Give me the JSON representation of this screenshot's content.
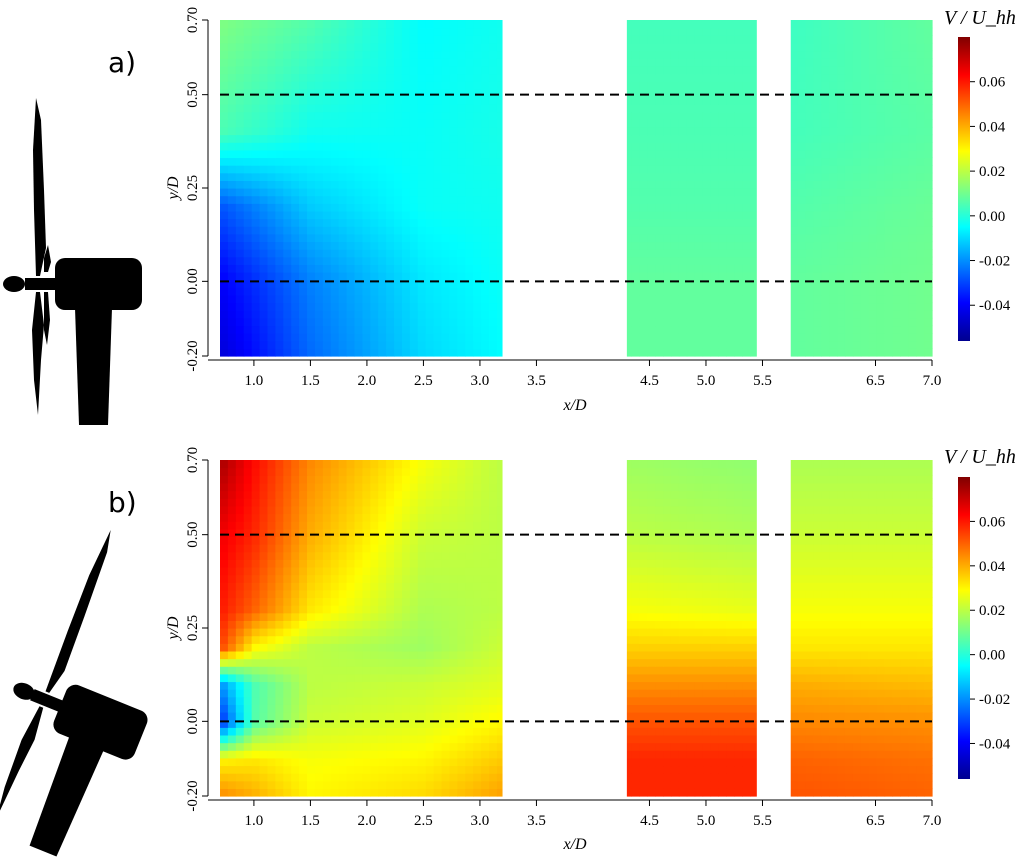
{
  "colors": {
    "colormap": [
      "#00008F",
      "#0000FF",
      "#0080FF",
      "#00FFFF",
      "#80FF80",
      "#FFFF00",
      "#FF8000",
      "#FF0000",
      "#800000"
    ],
    "guide_line": "#000000",
    "turbine": "#000000"
  },
  "chart_data": [
    {
      "type": "heatmap",
      "panel_label": "a)",
      "variable": "V/U_hh",
      "xlabel": "x/D",
      "ylabel": "y/D",
      "xlim": [
        0.7,
        7.0
      ],
      "ylim": [
        -0.2,
        0.7
      ],
      "x_ticks": [
        "1.0",
        "1.5",
        "2.0",
        "2.5",
        "3.0",
        "3.5",
        "4.5",
        "5.0",
        "5.5",
        "6.5",
        "7.0"
      ],
      "y_ticks": [
        "-0.20",
        "0.00",
        "0.25",
        "0.50",
        "0.70"
      ],
      "measured_x_ranges": [
        [
          0.7,
          3.2
        ],
        [
          4.3,
          5.45
        ],
        [
          5.75,
          7.0
        ]
      ],
      "reference_lines_y": [
        0.0,
        0.5
      ],
      "colorbar": {
        "title": "V / U_hh",
        "range": [
          -0.056,
          0.08
        ],
        "ticks": [
          "-0.04",
          "-0.02",
          "0.00",
          "0.02",
          "0.04",
          "0.06"
        ]
      },
      "turbine_yaw": "aligned",
      "field_grid": {
        "x": [
          0.7,
          1.5,
          2.5,
          3.2,
          4.3,
          5.45,
          5.75,
          7.0
        ],
        "y": [
          -0.2,
          0.0,
          0.2,
          0.4,
          0.7
        ],
        "values": [
          [
            -0.045,
            -0.025,
            -0.01,
            -0.005,
            0.008,
            0.008,
            0.008,
            0.01
          ],
          [
            -0.04,
            -0.022,
            -0.008,
            -0.004,
            0.008,
            0.008,
            0.008,
            0.01
          ],
          [
            -0.028,
            -0.012,
            -0.004,
            -0.003,
            0.006,
            0.006,
            0.006,
            0.009
          ],
          [
            0.005,
            -0.003,
            -0.004,
            -0.002,
            0.005,
            0.005,
            0.004,
            0.007
          ],
          [
            0.012,
            0.006,
            -0.005,
            -0.003,
            0.004,
            0.004,
            0.003,
            0.008
          ]
        ]
      }
    },
    {
      "type": "heatmap",
      "panel_label": "b)",
      "variable": "V/U_hh",
      "xlabel": "x/D",
      "ylabel": "y/D",
      "xlim": [
        0.7,
        7.0
      ],
      "ylim": [
        -0.2,
        0.7
      ],
      "x_ticks": [
        "1.0",
        "1.5",
        "2.0",
        "2.5",
        "3.0",
        "3.5",
        "4.5",
        "5.0",
        "5.5",
        "6.5",
        "7.0"
      ],
      "y_ticks": [
        "-0.20",
        "0.00",
        "0.25",
        "0.50",
        "0.70"
      ],
      "measured_x_ranges": [
        [
          0.7,
          3.2
        ],
        [
          4.3,
          5.45
        ],
        [
          5.75,
          7.0
        ]
      ],
      "reference_lines_y": [
        0.0,
        0.5
      ],
      "colorbar": {
        "title": "V / U_hh",
        "range": [
          -0.056,
          0.08
        ],
        "ticks": [
          "-0.04",
          "-0.02",
          "0.00",
          "0.02",
          "0.04",
          "0.06"
        ]
      },
      "turbine_yaw": "yawed",
      "field_grid": {
        "x": [
          0.7,
          1.0,
          1.5,
          2.5,
          3.2,
          4.3,
          5.45,
          5.75,
          7.0
        ],
        "y": [
          -0.2,
          -0.1,
          0.0,
          0.1,
          0.2,
          0.3,
          0.5,
          0.7
        ],
        "values": [
          [
            0.045,
            0.04,
            0.03,
            0.034,
            0.042,
            0.058,
            0.058,
            0.052,
            0.05
          ],
          [
            0.03,
            0.032,
            0.028,
            0.03,
            0.036,
            0.058,
            0.058,
            0.05,
            0.048
          ],
          [
            -0.035,
            0.006,
            0.022,
            0.025,
            0.03,
            0.052,
            0.052,
            0.045,
            0.044
          ],
          [
            -0.02,
            0.005,
            0.02,
            0.022,
            0.025,
            0.044,
            0.044,
            0.04,
            0.038
          ],
          [
            0.055,
            0.03,
            0.02,
            0.016,
            0.022,
            0.035,
            0.035,
            0.032,
            0.032
          ],
          [
            0.06,
            0.05,
            0.032,
            0.018,
            0.02,
            0.028,
            0.026,
            0.028,
            0.028
          ],
          [
            0.065,
            0.058,
            0.04,
            0.022,
            0.02,
            0.02,
            0.018,
            0.022,
            0.022
          ],
          [
            0.075,
            0.062,
            0.045,
            0.028,
            0.02,
            0.016,
            0.014,
            0.018,
            0.018
          ]
        ]
      }
    }
  ]
}
